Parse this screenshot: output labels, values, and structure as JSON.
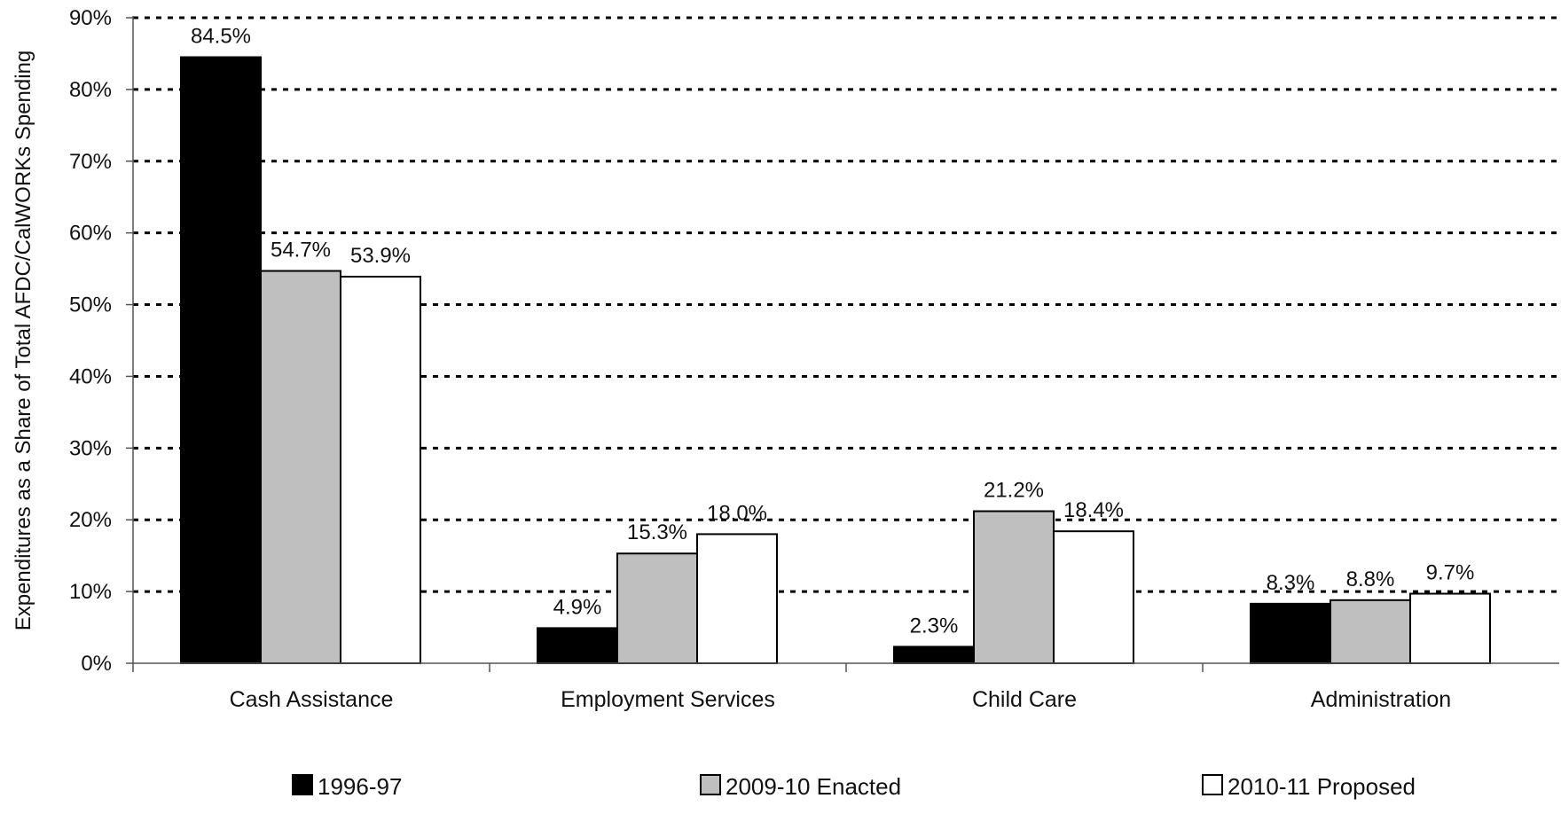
{
  "chart_data": {
    "type": "bar",
    "title": "",
    "xlabel": "",
    "ylabel": "Expenditures as a Share of Total AFDC/CalWORKs Spending",
    "ylim": [
      0,
      90
    ],
    "yticks": [
      0,
      10,
      20,
      30,
      40,
      50,
      60,
      70,
      80,
      90
    ],
    "ytick_suffix": "%",
    "grid": "horizontal dotted",
    "legend_position": "bottom",
    "categories": [
      "Cash Assistance",
      "Employment Services",
      "Child Care",
      "Administration"
    ],
    "series": [
      {
        "name": "1996-97",
        "color": "#000000",
        "values": [
          84.5,
          4.9,
          2.3,
          8.3
        ],
        "labels": [
          "84.5%",
          "4.9%",
          "2.3%",
          "8.3%"
        ]
      },
      {
        "name": "2009-10 Enacted",
        "color": "#bfbfbf",
        "values": [
          54.7,
          15.3,
          21.2,
          8.8
        ],
        "labels": [
          "54.7%",
          "15.3%",
          "21.2%",
          "8.8%"
        ]
      },
      {
        "name": "2010-11 Proposed",
        "color": "#ffffff",
        "values": [
          53.9,
          18.0,
          18.4,
          9.7
        ],
        "labels": [
          "53.9%",
          "18.0%",
          "18.4%",
          "9.7%"
        ]
      }
    ]
  }
}
